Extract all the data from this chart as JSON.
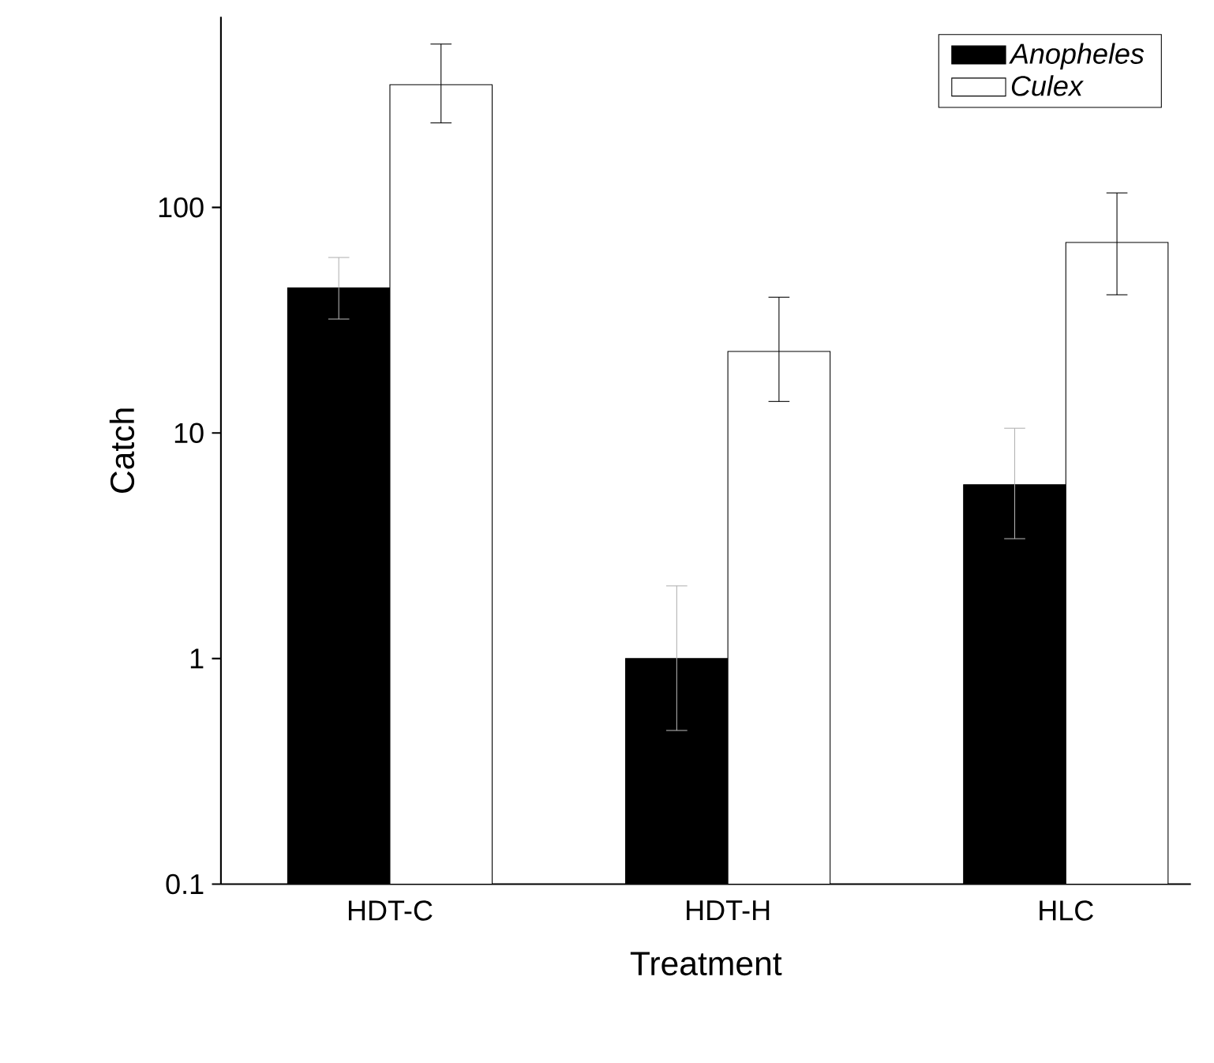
{
  "chart_data": {
    "type": "bar",
    "xlabel": "Treatment",
    "ylabel": "Catch",
    "categories": [
      "HDT-C",
      "HDT-H",
      "HLC"
    ],
    "series": [
      {
        "name": "Anopheles",
        "color": "#000000",
        "values": [
          44,
          1.0,
          5.9
        ],
        "errors": [
          [
            32,
            60
          ],
          [
            0.48,
            2.1
          ],
          [
            3.4,
            10.5
          ]
        ]
      },
      {
        "name": "Culex",
        "color": "#ffffff",
        "values": [
          350,
          23,
          70
        ],
        "errors": [
          [
            237,
            530
          ],
          [
            13.8,
            40
          ],
          [
            41,
            116
          ]
        ]
      }
    ],
    "log": "y",
    "ylim": [
      0.1,
      700
    ],
    "yticks": [
      0.1,
      1,
      10,
      100
    ],
    "legend": "top right"
  }
}
